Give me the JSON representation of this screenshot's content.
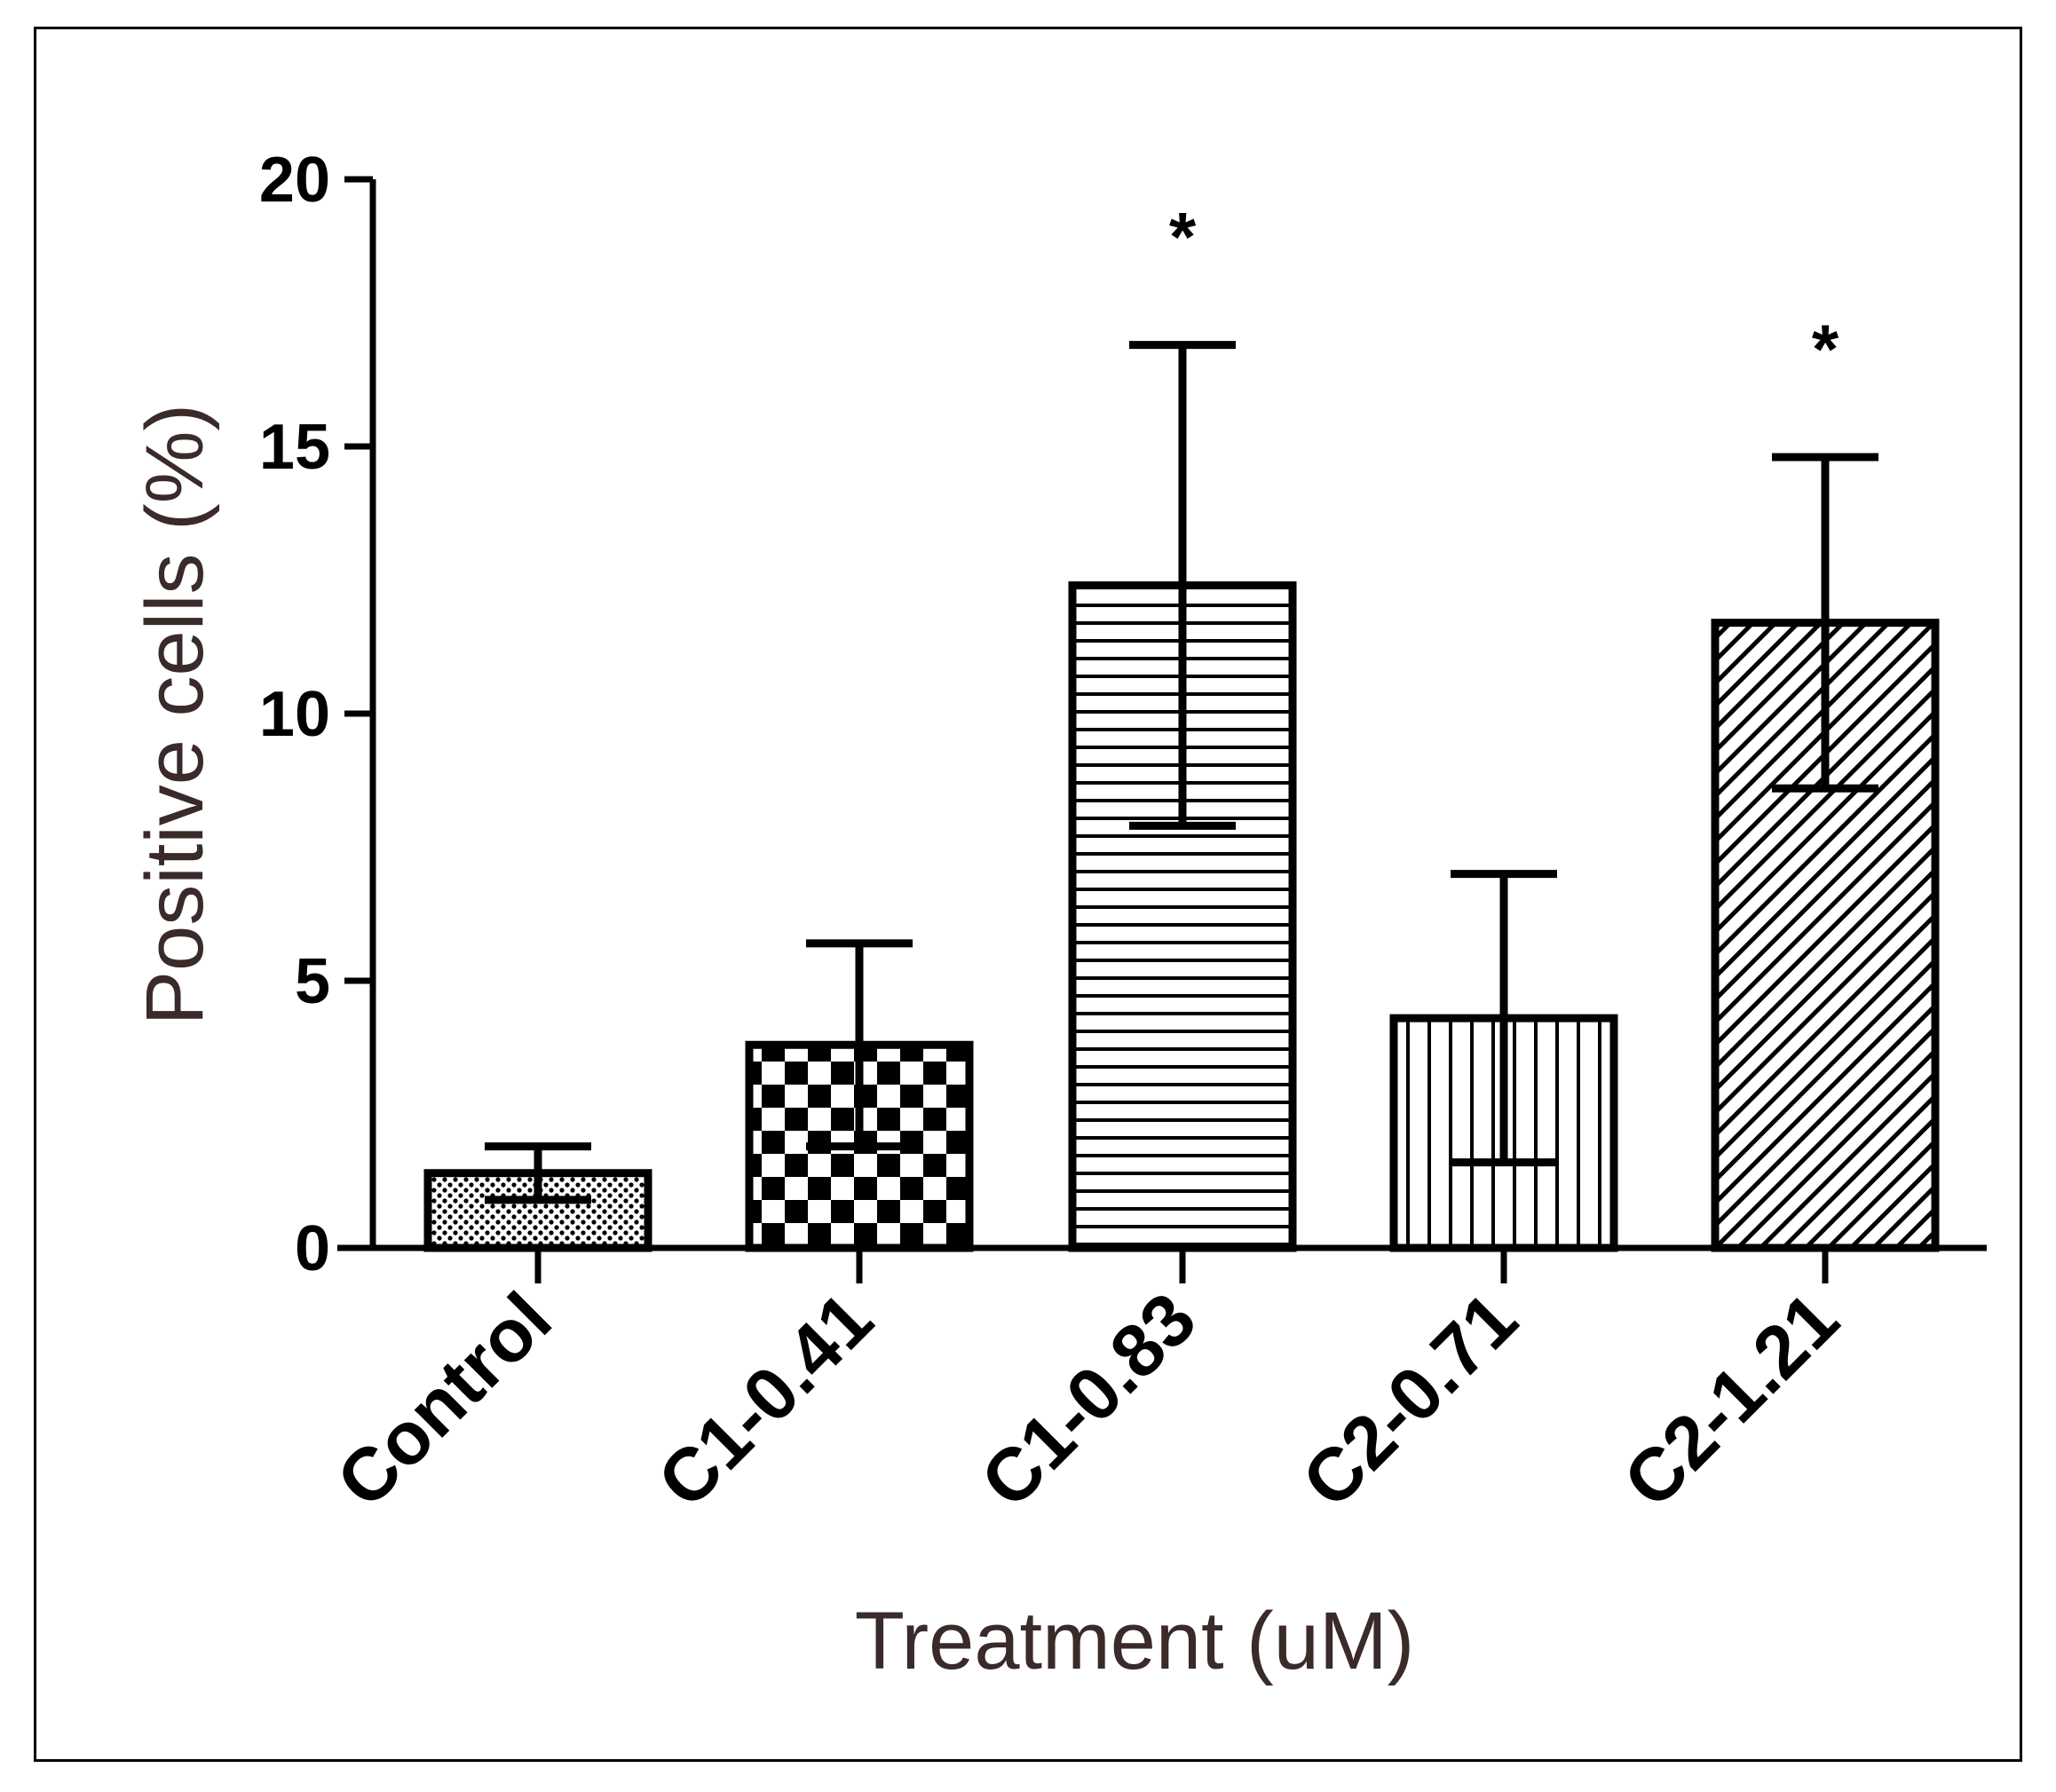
{
  "chart_data": {
    "type": "bar",
    "title": "",
    "xlabel": "Treatment (uM)",
    "ylabel": "Positive cells (%)",
    "ylim": [
      0,
      20
    ],
    "yticks": [
      0,
      5,
      10,
      15,
      20
    ],
    "grid": false,
    "categories": [
      "Control",
      "C1-0.41",
      "C1-0.83",
      "C2-0.71",
      "C2-1.21"
    ],
    "values": [
      1.4,
      3.8,
      12.4,
      4.3,
      11.7
    ],
    "errors": [
      0.5,
      1.9,
      4.5,
      2.7,
      3.1
    ],
    "patterns": [
      "dots",
      "checker",
      "hlines",
      "vlines",
      "diagonal"
    ],
    "annotations": [
      "",
      "",
      "*",
      "",
      "*"
    ]
  }
}
